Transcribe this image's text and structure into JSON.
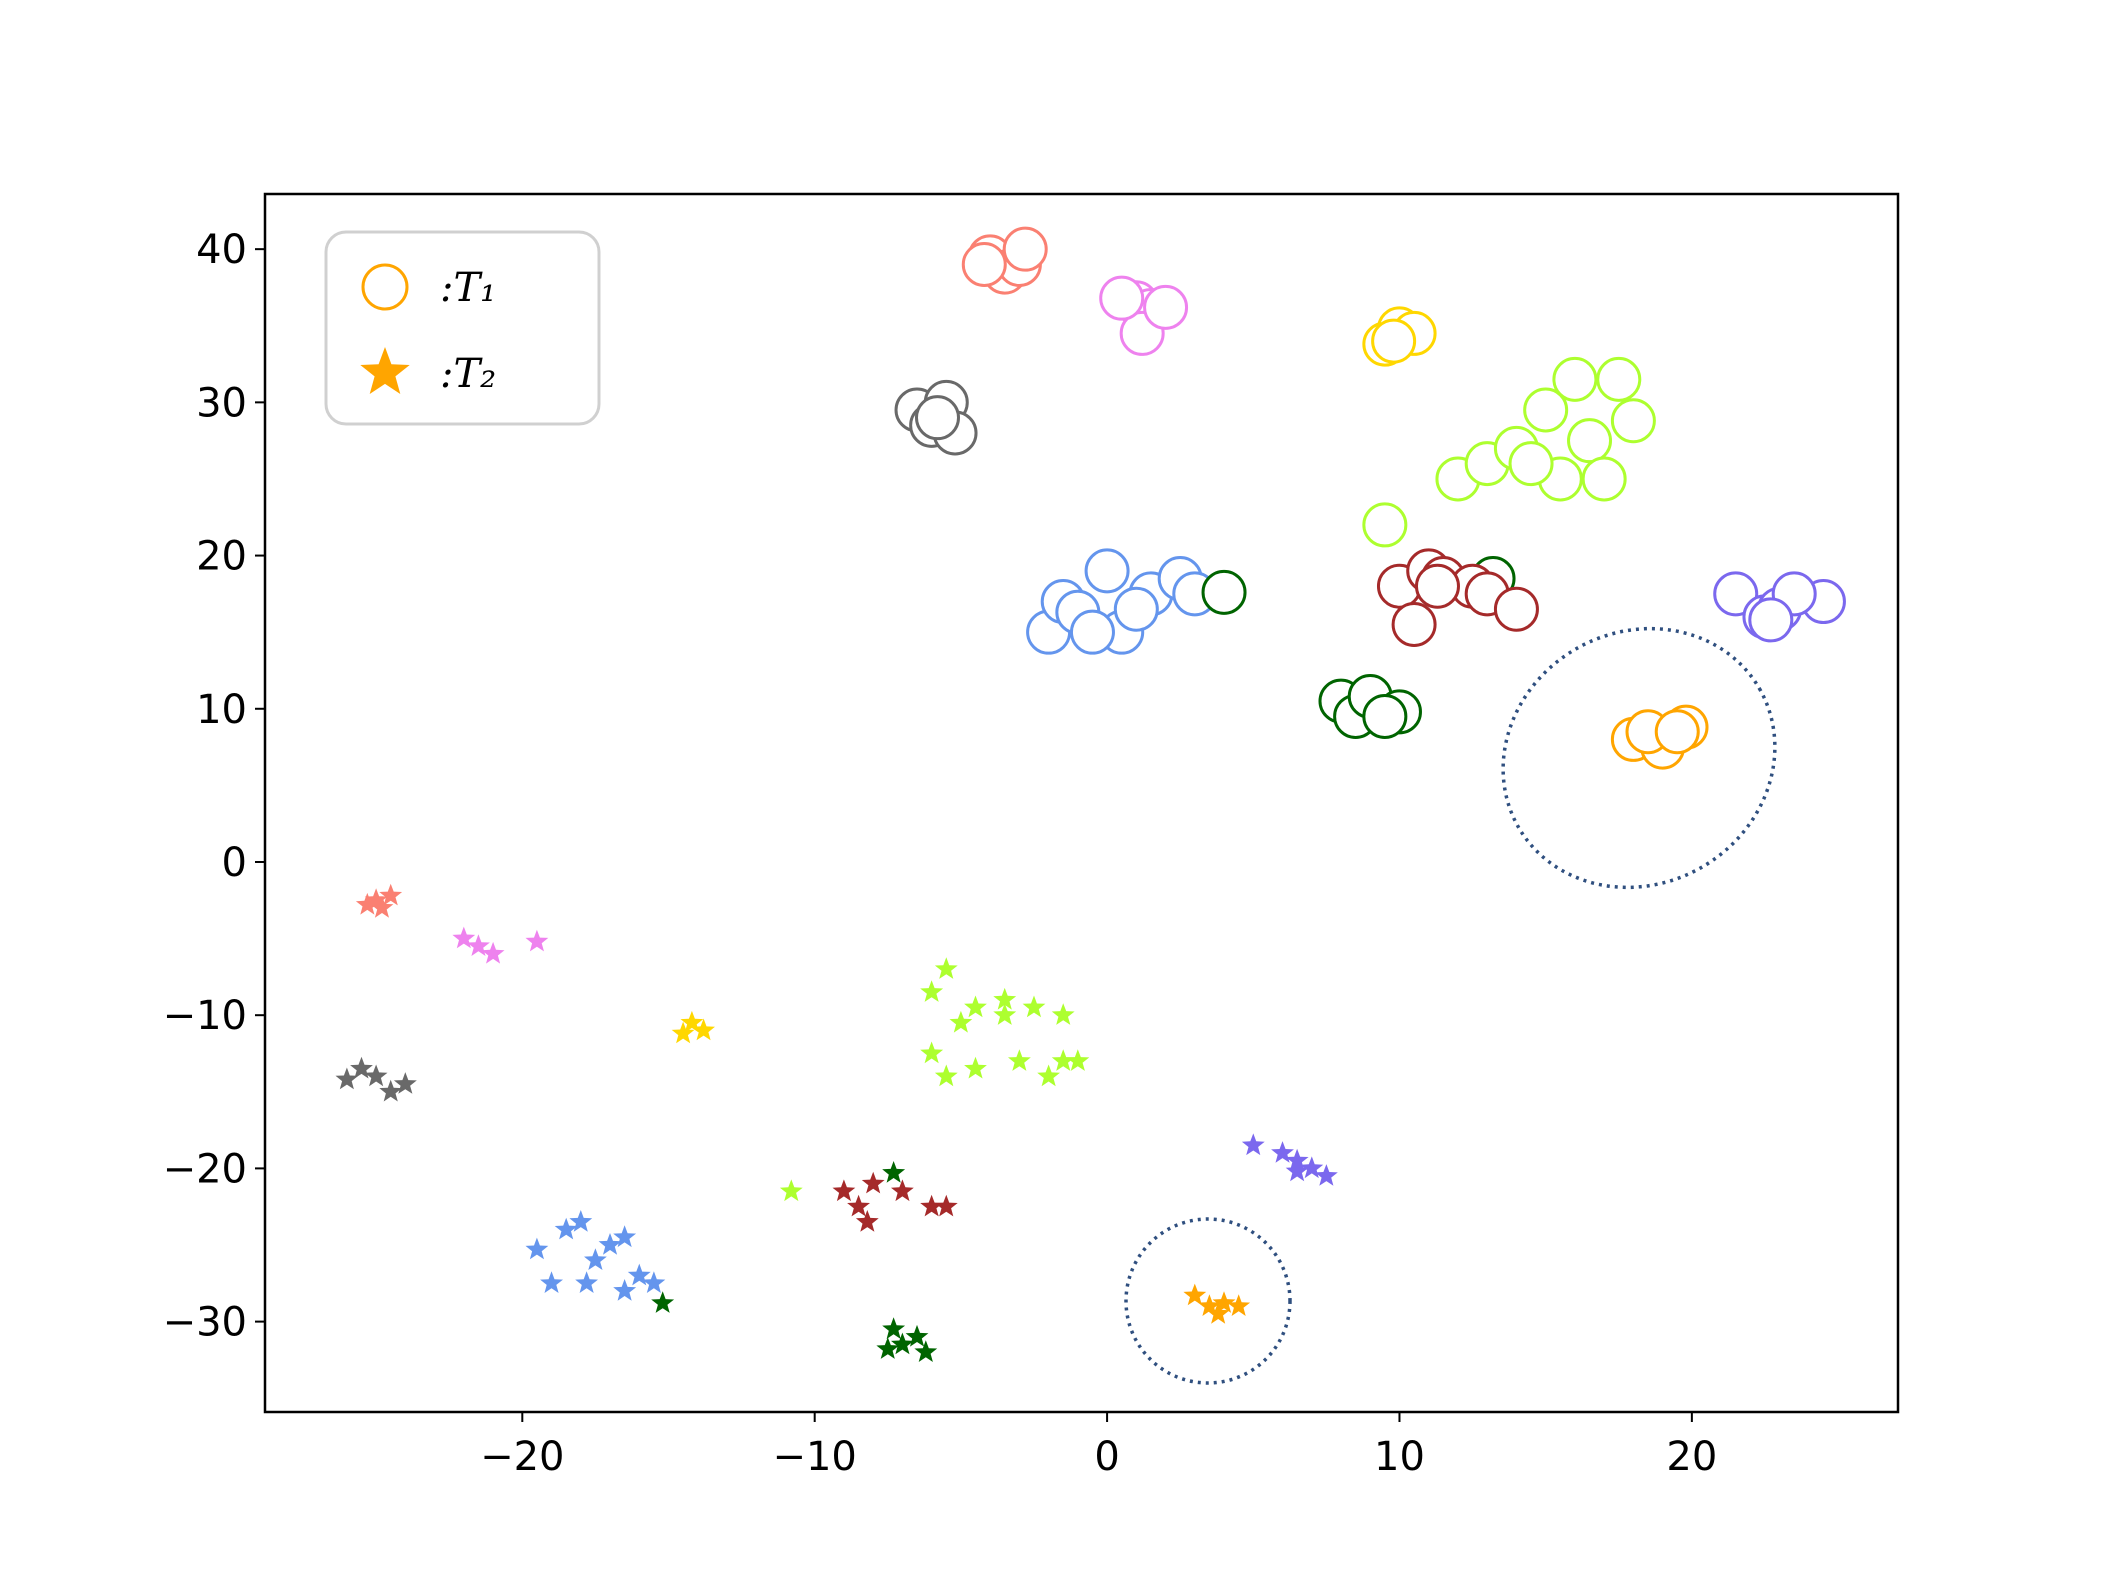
{
  "chart_data": {
    "type": "scatter",
    "xlim": [
      -28.8,
      27.05
    ],
    "ylim": [
      -35.9,
      43.6
    ],
    "xticks": [
      {
        "value": -20,
        "label": "−20"
      },
      {
        "value": -10,
        "label": "−10"
      },
      0,
      10,
      20
    ],
    "yticks": [
      {
        "value": -30,
        "label": "−30"
      },
      {
        "value": -20,
        "label": "−20"
      },
      {
        "value": -10,
        "label": "−10"
      },
      0,
      10,
      20,
      30,
      40
    ],
    "legend": "upper left",
    "series": [
      {
        "name": ":T₁",
        "color": "#ffa500",
        "marker": "circle",
        "x": [
          -4,
          -3.5,
          -3,
          -2.8,
          -4.2,
          1,
          1.5,
          1.2,
          2,
          0.5,
          -6.5,
          -5.5,
          -6,
          -5.2,
          -5.8,
          9.5,
          10,
          10.5,
          9.8,
          12,
          13,
          14,
          15,
          16,
          17.5,
          18,
          16.5,
          15.5,
          17,
          14.5,
          9.5,
          -2,
          -1.5,
          -1,
          0,
          0.5,
          1.5,
          2.5,
          3,
          -0.5,
          1,
          4,
          13.2,
          8,
          8.5,
          9,
          10,
          9.5,
          10,
          11,
          11.5,
          10.5,
          12.5,
          13,
          14,
          11.3,
          21.5,
          22.5,
          23,
          24.5,
          23.5,
          22.7,
          18,
          19,
          19.8,
          18.5,
          19.5
        ],
        "y": [
          39.5,
          38.5,
          39,
          40,
          39,
          36.5,
          36,
          34.5,
          36.2,
          36.8,
          29.5,
          30,
          28.5,
          28,
          29,
          33.8,
          34.8,
          34.5,
          34,
          25,
          26,
          27,
          29.5,
          31.5,
          31.5,
          28.8,
          27.5,
          25,
          25,
          26,
          22,
          15,
          17,
          16.3,
          19,
          15,
          17.5,
          18.5,
          17.5,
          15,
          16.5,
          17.6,
          18.5,
          10.5,
          9.5,
          10.8,
          9.8,
          9.5,
          18,
          19,
          18.5,
          15.5,
          18,
          17.5,
          16.5,
          18,
          17.5,
          16,
          16.5,
          17,
          17.5,
          15.8,
          8,
          7.5,
          8.8,
          8.5,
          8.5
        ],
        "colors": [
          "#fa8072",
          "#fa8072",
          "#fa8072",
          "#fa8072",
          "#fa8072",
          "#ee82ee",
          "#ee82ee",
          "#ee82ee",
          "#ee82ee",
          "#ee82ee",
          "#696969",
          "#696969",
          "#696969",
          "#696969",
          "#696969",
          "#ffd700",
          "#ffd700",
          "#ffd700",
          "#ffd700",
          "#adff2f",
          "#adff2f",
          "#adff2f",
          "#adff2f",
          "#adff2f",
          "#adff2f",
          "#adff2f",
          "#adff2f",
          "#adff2f",
          "#adff2f",
          "#adff2f",
          "#adff2f",
          "#6495ed",
          "#6495ed",
          "#6495ed",
          "#6495ed",
          "#6495ed",
          "#6495ed",
          "#6495ed",
          "#6495ed",
          "#6495ed",
          "#6495ed",
          "#006400",
          "#006400",
          "#006400",
          "#006400",
          "#006400",
          "#006400",
          "#006400",
          "#a52a2a",
          "#a52a2a",
          "#a52a2a",
          "#a52a2a",
          "#a52a2a",
          "#a52a2a",
          "#a52a2a",
          "#a52a2a",
          "#7b68ee",
          "#7b68ee",
          "#7b68ee",
          "#7b68ee",
          "#7b68ee",
          "#7b68ee",
          "#ffa500",
          "#ffa500",
          "#ffa500",
          "#ffa500",
          "#ffa500"
        ]
      },
      {
        "name": ":T₂",
        "color": "#ffa500",
        "marker": "star",
        "x": [
          -25,
          -24.5,
          -25.3,
          -24.8,
          -21.5,
          -21,
          -22,
          -19.5,
          -14.2,
          -13.8,
          -14.5,
          -25,
          -24.5,
          -26,
          -24,
          -25.5,
          -6,
          -5.5,
          -4.5,
          -3.5,
          -2.5,
          -1.5,
          -5,
          -6,
          -5.5,
          -4.5,
          -3,
          -2,
          -1.5,
          -1,
          -3.5,
          -10.8,
          -19.5,
          -18.5,
          -18,
          -17.5,
          -17,
          -16.5,
          -16,
          -16.5,
          -15.5,
          -17.8,
          -19,
          -15.2,
          -7.3,
          -7.3,
          -7,
          -6.5,
          -6.2,
          -7.5,
          -9,
          -8.5,
          -8,
          -8.2,
          -7,
          -6,
          -5.5,
          5,
          6,
          6.5,
          7,
          7.5,
          6.5,
          3,
          3.5,
          4,
          4.5,
          3.8
        ],
        "y": [
          -2.5,
          -2.2,
          -2.8,
          -3,
          -5.5,
          -6,
          -5,
          -5.2,
          -10.5,
          -11,
          -11.2,
          -14,
          -15,
          -14.2,
          -14.5,
          -13.5,
          -8.5,
          -7,
          -9.5,
          -9,
          -9.5,
          -10,
          -10.5,
          -12.5,
          -14,
          -13.5,
          -13,
          -14,
          -13,
          -13,
          -10,
          -21.5,
          -25.3,
          -24,
          -23.5,
          -26,
          -25,
          -24.5,
          -27,
          -28,
          -27.5,
          -27.5,
          -27.5,
          -28.8,
          -20.3,
          -30.5,
          -31.5,
          -31,
          -32,
          -31.8,
          -21.5,
          -22.5,
          -21,
          -23.5,
          -21.5,
          -22.5,
          -22.5,
          -18.5,
          -19,
          -19.5,
          -20,
          -20.5,
          -20.2,
          -28.3,
          -29,
          -28.8,
          -29,
          -29.5
        ],
        "colors": [
          "#fa8072",
          "#fa8072",
          "#fa8072",
          "#fa8072",
          "#ee82ee",
          "#ee82ee",
          "#ee82ee",
          "#ee82ee",
          "#ffd700",
          "#ffd700",
          "#ffd700",
          "#696969",
          "#696969",
          "#696969",
          "#696969",
          "#696969",
          "#adff2f",
          "#adff2f",
          "#adff2f",
          "#adff2f",
          "#adff2f",
          "#adff2f",
          "#adff2f",
          "#adff2f",
          "#adff2f",
          "#adff2f",
          "#adff2f",
          "#adff2f",
          "#adff2f",
          "#adff2f",
          "#adff2f",
          "#adff2f",
          "#6495ed",
          "#6495ed",
          "#6495ed",
          "#6495ed",
          "#6495ed",
          "#6495ed",
          "#6495ed",
          "#6495ed",
          "#6495ed",
          "#6495ed",
          "#6495ed",
          "#006400",
          "#006400",
          "#006400",
          "#006400",
          "#006400",
          "#006400",
          "#006400",
          "#a52a2a",
          "#a52a2a",
          "#a52a2a",
          "#a52a2a",
          "#a52a2a",
          "#a52a2a",
          "#a52a2a",
          "#7b68ee",
          "#7b68ee",
          "#7b68ee",
          "#7b68ee",
          "#7b68ee",
          "#7b68ee",
          "#ffa500",
          "#ffa500",
          "#ffa500",
          "#ffa500",
          "#ffa500"
        ]
      }
    ]
  }
}
